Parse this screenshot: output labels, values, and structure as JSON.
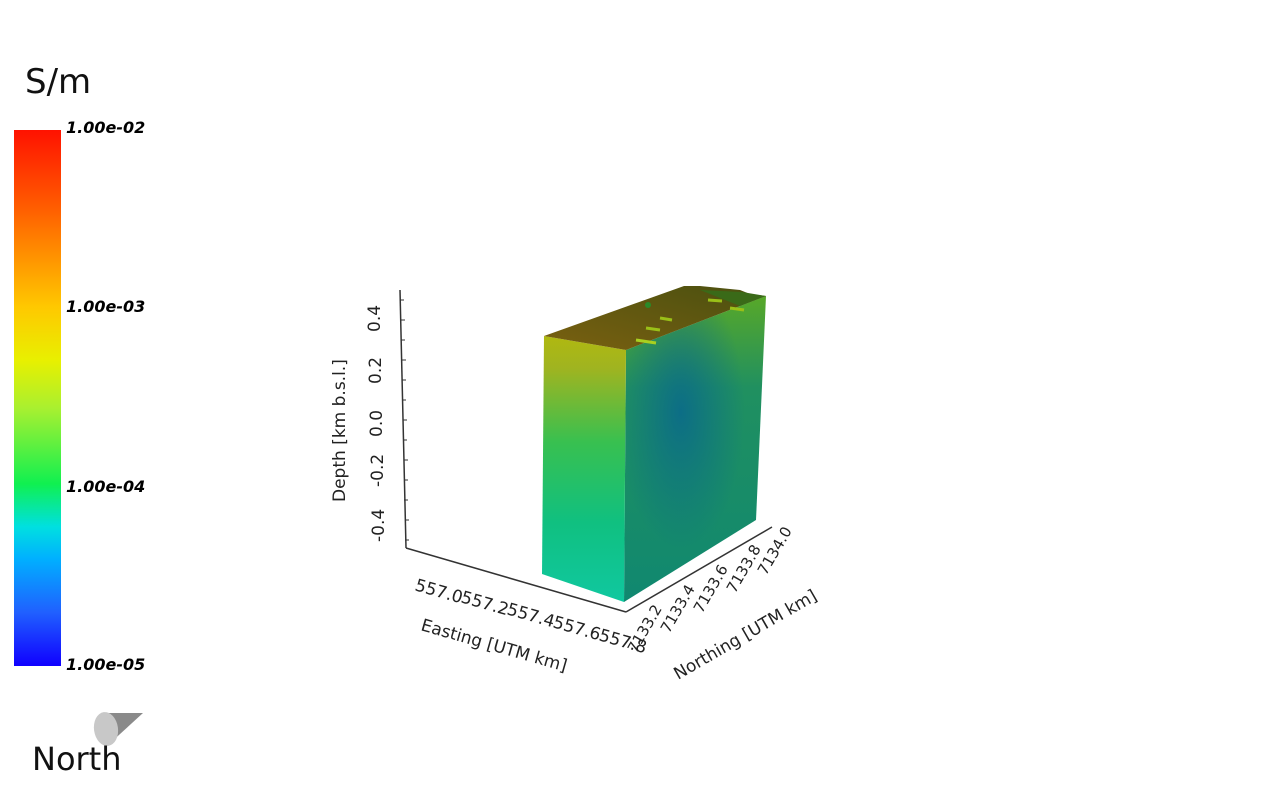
{
  "colorbar": {
    "unit": "S/m",
    "ticks": [
      "1.00e-02",
      "1.00e-03",
      "1.00e-04",
      "1.00e-05"
    ]
  },
  "axes": {
    "depth_label": "Depth [km b.s.l.]",
    "depth_ticks": [
      "-0.4",
      "-0.2",
      "0.0",
      "0.2",
      "0.4"
    ],
    "easting_label": "Easting [UTM km]",
    "easting_ticks": [
      "557.0",
      "557.2",
      "557.4",
      "557.6",
      "557.8"
    ],
    "northing_label": "Northing [UTM km]",
    "northing_ticks": [
      "7133.2",
      "7133.4",
      "7133.6",
      "7133.8",
      "7134.0"
    ]
  },
  "orientation": {
    "label": "North",
    "icon": "north-cone-icon"
  },
  "colors": {
    "background": "#ffffff",
    "colormap": "jet"
  }
}
